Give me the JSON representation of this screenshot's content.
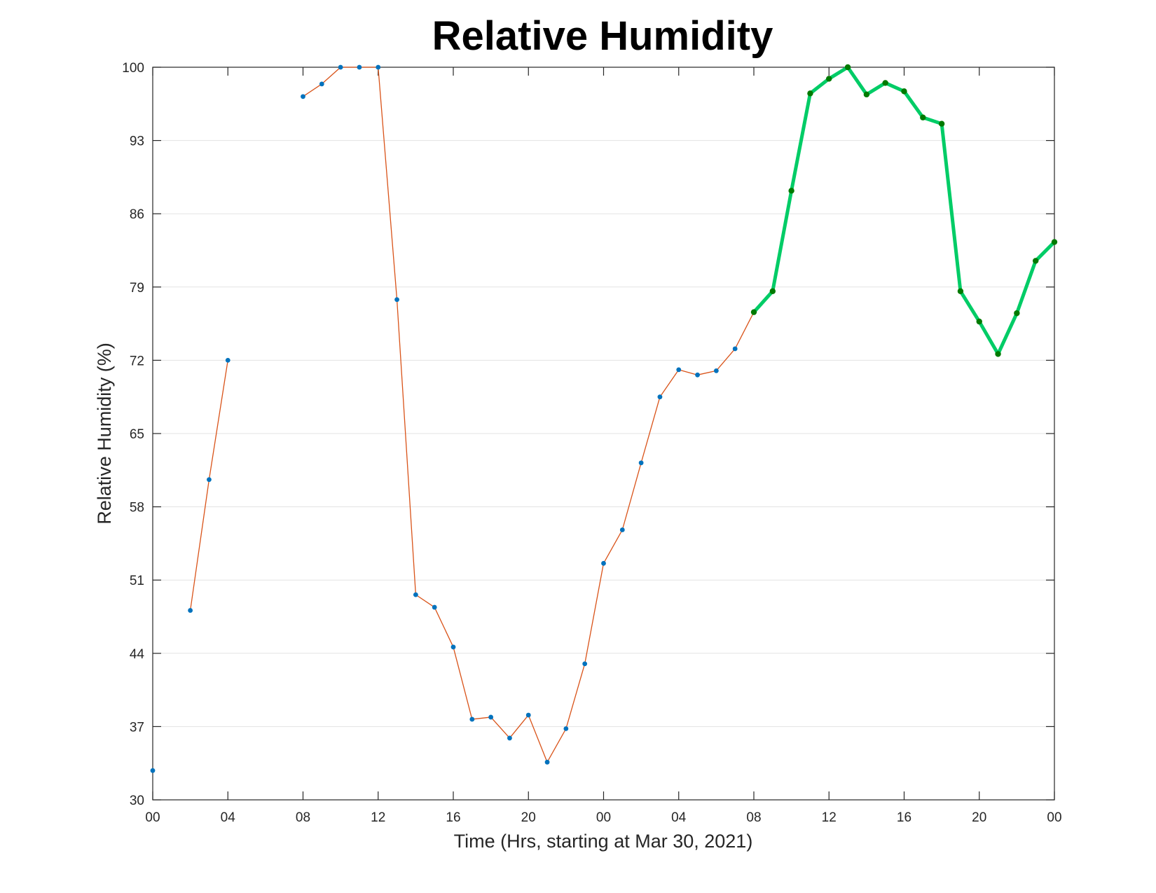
{
  "chart_data": {
    "type": "line",
    "title": "Relative Humidity",
    "xlabel": "Time (Hrs, starting at Mar 30, 2021)",
    "ylabel": "Relative Humidity (%)",
    "ylim": [
      30,
      100
    ],
    "xlim": [
      0,
      48
    ],
    "y_ticks": [
      30,
      37,
      44,
      51,
      58,
      65,
      72,
      79,
      86,
      93,
      100
    ],
    "x_ticks": [
      {
        "hour": 0,
        "label": "00"
      },
      {
        "hour": 4,
        "label": "04"
      },
      {
        "hour": 8,
        "label": "08"
      },
      {
        "hour": 12,
        "label": "12"
      },
      {
        "hour": 16,
        "label": "16"
      },
      {
        "hour": 20,
        "label": "20"
      },
      {
        "hour": 24,
        "label": "00"
      },
      {
        "hour": 28,
        "label": "04"
      },
      {
        "hour": 32,
        "label": "08"
      },
      {
        "hour": 36,
        "label": "12"
      },
      {
        "hour": 40,
        "label": "16"
      },
      {
        "hour": 44,
        "label": "20"
      },
      {
        "hour": 48,
        "label": "00"
      }
    ],
    "grid": "horizontal",
    "series": [
      {
        "kind": "observed",
        "line_color": "#D95319",
        "marker_color": "#0072BD",
        "x": [
          0,
          2,
          3,
          4,
          8,
          9,
          10,
          11,
          12,
          13,
          14,
          15,
          16,
          17,
          18,
          19,
          20,
          21,
          22,
          23,
          24,
          25,
          26,
          27,
          28,
          29,
          30,
          31,
          32
        ],
        "values": [
          32.8,
          48.1,
          60.6,
          72.0,
          97.2,
          98.4,
          100.0,
          100.0,
          100.0,
          77.8,
          49.6,
          48.4,
          44.6,
          37.7,
          37.9,
          35.9,
          38.1,
          33.6,
          36.8,
          43.0,
          52.6,
          55.8,
          62.2,
          68.5,
          71.1,
          70.6,
          71.0,
          73.1,
          76.6
        ],
        "gaps_after_x": [
          0,
          4
        ]
      },
      {
        "kind": "forecast",
        "line_color": "#00CC66",
        "marker_color": "#007A00",
        "x": [
          32,
          33,
          34,
          35,
          36,
          37,
          38,
          39,
          40,
          41,
          42,
          43,
          44,
          45,
          46,
          47,
          48
        ],
        "values": [
          76.6,
          78.6,
          88.2,
          97.5,
          98.9,
          100.0,
          97.4,
          98.5,
          97.7,
          95.2,
          94.6,
          78.6,
          75.7,
          72.6,
          76.5,
          81.5,
          83.3
        ]
      }
    ]
  }
}
